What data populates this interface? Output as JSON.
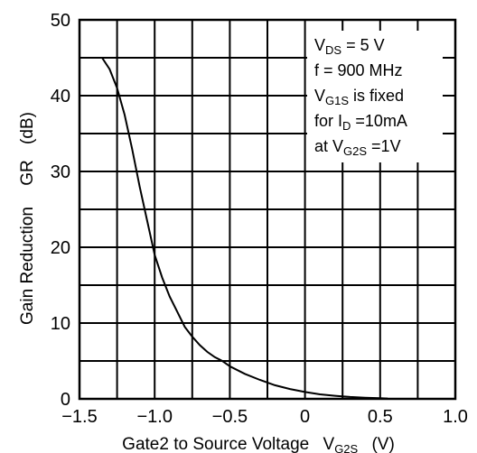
{
  "chart_data": {
    "type": "line",
    "title": "",
    "xlabel": "Gate2 to Source Voltage",
    "xlabel_symbol": {
      "main": "V",
      "sub": "G2S"
    },
    "xlabel_unit": "(V)",
    "ylabel": "Gain Reduction",
    "ylabel_symbol": "GR",
    "ylabel_unit": "(dB)",
    "xlim": [
      -1.5,
      1.0
    ],
    "ylim": [
      0,
      50
    ],
    "x_ticks": [
      -1.5,
      -1.0,
      -0.5,
      0,
      0.5,
      1.0
    ],
    "x_tick_labels": [
      "−1.5",
      "−1.0",
      "−0.5",
      "0",
      "0.5",
      "1.0"
    ],
    "y_ticks": [
      0,
      10,
      20,
      30,
      40,
      50
    ],
    "y_tick_labels": [
      "0",
      "10",
      "20",
      "30",
      "40",
      "50"
    ],
    "x_minor_step": 0.25,
    "y_minor_step": 5,
    "grid": true,
    "series": [
      {
        "x": [
          -1.35,
          -1.3,
          -1.25,
          -1.2,
          -1.15,
          -1.1,
          -1.05,
          -1.0,
          -0.95,
          -0.9,
          -0.85,
          -0.8,
          -0.75,
          -0.7,
          -0.65,
          -0.6,
          -0.55,
          -0.5,
          -0.4,
          -0.3,
          -0.2,
          -0.1,
          0.0,
          0.1,
          0.2,
          0.3,
          0.4,
          0.5,
          0.55
        ],
        "y": [
          45,
          43.5,
          41,
          37.5,
          33,
          28,
          23.5,
          19,
          16,
          13.5,
          11.5,
          9.5,
          8.2,
          7.1,
          6.2,
          5.5,
          5.0,
          4.3,
          3.3,
          2.5,
          1.8,
          1.3,
          0.9,
          0.6,
          0.4,
          0.25,
          0.15,
          0.1,
          0.05
        ]
      }
    ],
    "annotation": [
      {
        "main": "V",
        "sub": "DS",
        "rest": " = 5 V"
      },
      {
        "main": "f = 900 MHz",
        "sub": "",
        "rest": ""
      },
      {
        "main": "V",
        "sub": "G1S",
        "rest": " is fixed"
      },
      {
        "main": "for I",
        "sub": "D",
        "rest": " =10mA"
      },
      {
        "main": "at V",
        "sub": "G2S",
        "rest": " =1V"
      }
    ],
    "annotation_position": "top-right"
  }
}
